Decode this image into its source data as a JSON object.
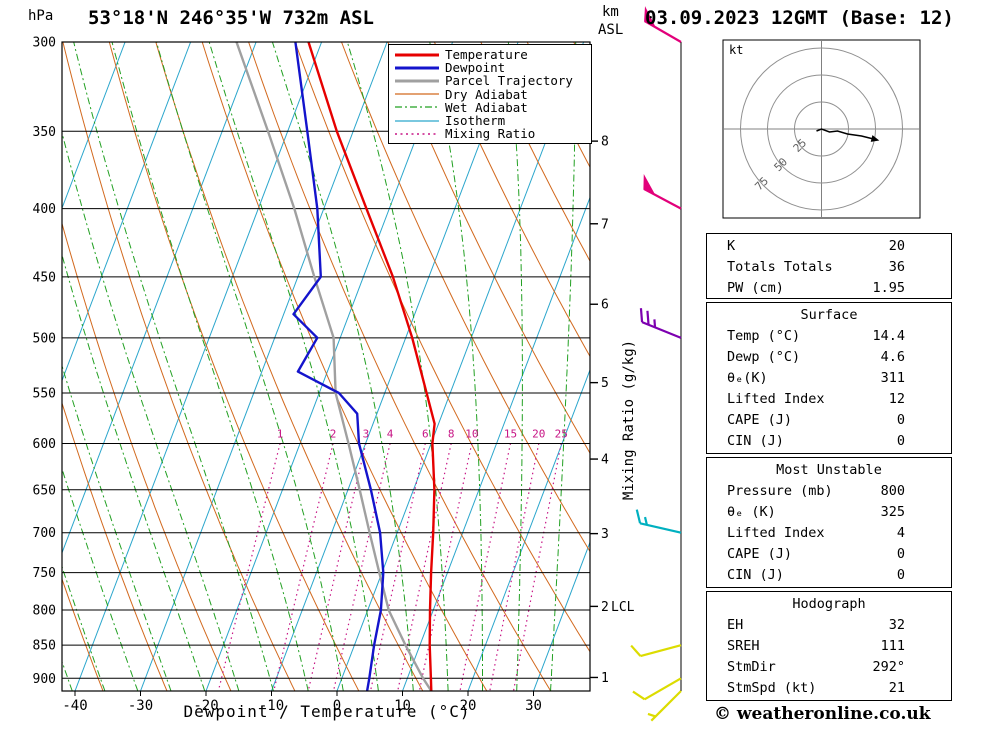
{
  "header": {
    "station": "53°18'N 246°35'W 732m ASL",
    "datetime": "03.09.2023 12GMT (Base: 12)",
    "pressure_unit": "hPa",
    "km_label": "km",
    "asl_label": "ASL"
  },
  "axes": {
    "pressure_ticks": [
      300,
      350,
      400,
      450,
      500,
      550,
      600,
      650,
      700,
      750,
      800,
      850,
      900
    ],
    "temp_ticks": [
      -40,
      -30,
      -20,
      -10,
      0,
      10,
      20,
      30
    ],
    "km_ticks": [
      1,
      2,
      3,
      4,
      5,
      6,
      7,
      8
    ],
    "xlabel": "Dewpoint / Temperature (°C)",
    "right_label": "Mixing Ratio (g/kg)",
    "lcl_label": "LCL",
    "mixing_ratio_values": [
      1,
      2,
      3,
      4,
      6,
      8,
      10,
      15,
      20,
      25
    ]
  },
  "legend": [
    {
      "label": "Temperature",
      "color_key": "temperature",
      "width": 3,
      "dash": ""
    },
    {
      "label": "Dewpoint",
      "color_key": "dewpoint",
      "width": 3,
      "dash": ""
    },
    {
      "label": "Parcel Trajectory",
      "color_key": "parcel",
      "width": 3,
      "dash": ""
    },
    {
      "label": "Dry Adiabat",
      "color_key": "dry_adiabat",
      "width": 1.3,
      "dash": ""
    },
    {
      "label": "Wet Adiabat",
      "color_key": "wet_adiabat",
      "width": 1.3,
      "dash": "7 3 2 3"
    },
    {
      "label": "Isotherm",
      "color_key": "isotherm",
      "width": 1.3,
      "dash": ""
    },
    {
      "label": "Mixing Ratio",
      "color_key": "mixing_ratio",
      "width": 1.5,
      "dash": "2 3.5"
    }
  ],
  "chart_data": {
    "type": "line",
    "title": "Skew-T log-P sounding 53°18'N 246°35'W 732m ASL 03.09.2023 12GMT",
    "pressure_axis": {
      "range": [
        300,
        920
      ],
      "log_scale": true,
      "unit": "hPa"
    },
    "temp_axis": {
      "range": [
        -40,
        38
      ],
      "unit": "°C",
      "skew": true
    },
    "temperature_profile": [
      [
        920,
        14.4
      ],
      [
        900,
        13.6
      ],
      [
        850,
        11.5
      ],
      [
        800,
        9.5
      ],
      [
        750,
        7.5
      ],
      [
        700,
        5.5
      ],
      [
        650,
        3.2
      ],
      [
        600,
        0.2
      ],
      [
        580,
        -0.6
      ],
      [
        550,
        -3.6
      ],
      [
        500,
        -9.0
      ],
      [
        450,
        -15.5
      ],
      [
        400,
        -23.5
      ],
      [
        350,
        -32.5
      ],
      [
        300,
        -42.0
      ]
    ],
    "dewpoint_profile": [
      [
        920,
        4.6
      ],
      [
        900,
        4.2
      ],
      [
        850,
        3.0
      ],
      [
        800,
        2.0
      ],
      [
        750,
        0.2
      ],
      [
        700,
        -2.6
      ],
      [
        650,
        -6.5
      ],
      [
        600,
        -11.0
      ],
      [
        570,
        -13.0
      ],
      [
        550,
        -17.0
      ],
      [
        530,
        -24.5
      ],
      [
        500,
        -23.5
      ],
      [
        480,
        -28.5
      ],
      [
        450,
        -26.5
      ],
      [
        400,
        -31.0
      ],
      [
        350,
        -37.0
      ],
      [
        300,
        -44.0
      ]
    ],
    "parcel_profile": [
      [
        920,
        14.4
      ],
      [
        900,
        12.4
      ],
      [
        850,
        7.8
      ],
      [
        800,
        3.2
      ],
      [
        750,
        -0.4
      ],
      [
        700,
        -4.2
      ],
      [
        650,
        -8.2
      ],
      [
        600,
        -12.6
      ],
      [
        550,
        -17.5
      ],
      [
        500,
        -21.0
      ],
      [
        450,
        -27.5
      ],
      [
        400,
        -34.5
      ],
      [
        350,
        -43.0
      ],
      [
        300,
        -53.0
      ]
    ],
    "colors": {
      "temperature": "#e60000",
      "dewpoint": "#1414cc",
      "parcel": "#a0a0a0",
      "dry_adiabat": "#d2691e",
      "wet_adiabat": "#22a022",
      "isotherm": "#2ba6cc",
      "mixing_ratio": "#c71585",
      "pressure_line": "#000000"
    }
  },
  "wind_barbs": [
    {
      "pressure": 300,
      "dir_deg": 300,
      "speed_kt": 50,
      "color": "#e2007a"
    },
    {
      "pressure": 400,
      "dir_deg": 298,
      "speed_kt": 50,
      "color": "#e2007a"
    },
    {
      "pressure": 500,
      "dir_deg": 292,
      "speed_kt": 25,
      "color": "#7d00b0"
    },
    {
      "pressure": 700,
      "dir_deg": 283,
      "speed_kt": 15,
      "color": "#00b0c0"
    },
    {
      "pressure": 850,
      "dir_deg": 255,
      "speed_kt": 10,
      "color": "#dcdc00"
    },
    {
      "pressure": 900,
      "dir_deg": 240,
      "speed_kt": 10,
      "color": "#dcdc00"
    },
    {
      "pressure": 920,
      "dir_deg": 225,
      "speed_kt": 5,
      "color": "#dcdc00"
    }
  ],
  "hodograph": {
    "unit": "kt",
    "rings": [
      25,
      50,
      75
    ],
    "trace": [
      [
        -5,
        2
      ],
      [
        0,
        0
      ],
      [
        8,
        3
      ],
      [
        16,
        2
      ],
      [
        26,
        5
      ],
      [
        40,
        7
      ],
      [
        52,
        10
      ]
    ]
  },
  "tables": [
    {
      "title": null,
      "rows": [
        [
          "K",
          "20"
        ],
        [
          "Totals Totals",
          "36"
        ],
        [
          "PW (cm)",
          "1.95"
        ]
      ]
    },
    {
      "title": "Surface",
      "rows": [
        [
          "Temp (°C)",
          "14.4"
        ],
        [
          "Dewp (°C)",
          "4.6"
        ],
        [
          "θₑ(K)",
          "311"
        ],
        [
          "Lifted Index",
          "12"
        ],
        [
          "CAPE (J)",
          "0"
        ],
        [
          "CIN (J)",
          "0"
        ]
      ]
    },
    {
      "title": "Most Unstable",
      "rows": [
        [
          "Pressure (mb)",
          "800"
        ],
        [
          "θₑ (K)",
          "325"
        ],
        [
          "Lifted Index",
          "4"
        ],
        [
          "CAPE (J)",
          "0"
        ],
        [
          "CIN (J)",
          "0"
        ]
      ]
    },
    {
      "title": "Hodograph",
      "rows": [
        [
          "EH",
          "32"
        ],
        [
          "SREH",
          "111"
        ],
        [
          "StmDir",
          "292°"
        ],
        [
          "StmSpd (kt)",
          "21"
        ]
      ]
    }
  ],
  "footer": {
    "copyright": "© weatheronline.co.uk"
  }
}
